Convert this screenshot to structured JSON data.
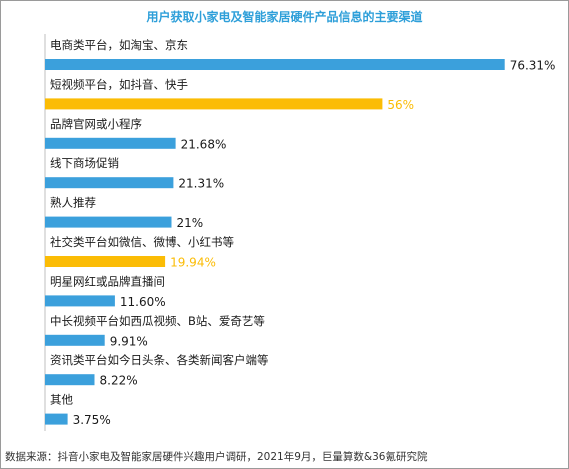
{
  "chart_data": {
    "type": "bar",
    "orientation": "horizontal",
    "title": "用户获取小家电及智能家居硬件产品信息的主要渠道",
    "categories": [
      "电商类平台，如淘宝、京东",
      "短视频平台，如抖音、快手",
      "品牌官网或小程序",
      "线下商场促销",
      "熟人推荐",
      "社交类平台如微信、微博、小红书等",
      "明星网红或品牌直播间",
      "中长视频平台如西瓜视频、B站、爱奇艺等",
      "资讯类平台如今日头条、各类新闻客户端等",
      "其他"
    ],
    "values": [
      76.31,
      56,
      21.68,
      21.31,
      21,
      19.94,
      11.6,
      9.91,
      8.22,
      3.75
    ],
    "value_labels": [
      "76.31%",
      "56%",
      "21.68%",
      "21.31%",
      "21%",
      "19.94%",
      "11.60%",
      "9.91%",
      "8.22%",
      "3.75%"
    ],
    "highlighted": [
      false,
      true,
      false,
      false,
      false,
      true,
      false,
      false,
      false,
      false
    ],
    "xlim": [
      0,
      80
    ],
    "grid": false,
    "legend": "none",
    "colors": {
      "bar": "#3ba0dc",
      "highlight": "#fbbc05",
      "title": "#2e9fd9",
      "label": "#1a1a1a",
      "source": "#333333"
    },
    "source": "数据来源：抖音小家电及智能家居硬件兴趣用户调研，2021年9月，巨量算数&36氪研究院"
  }
}
